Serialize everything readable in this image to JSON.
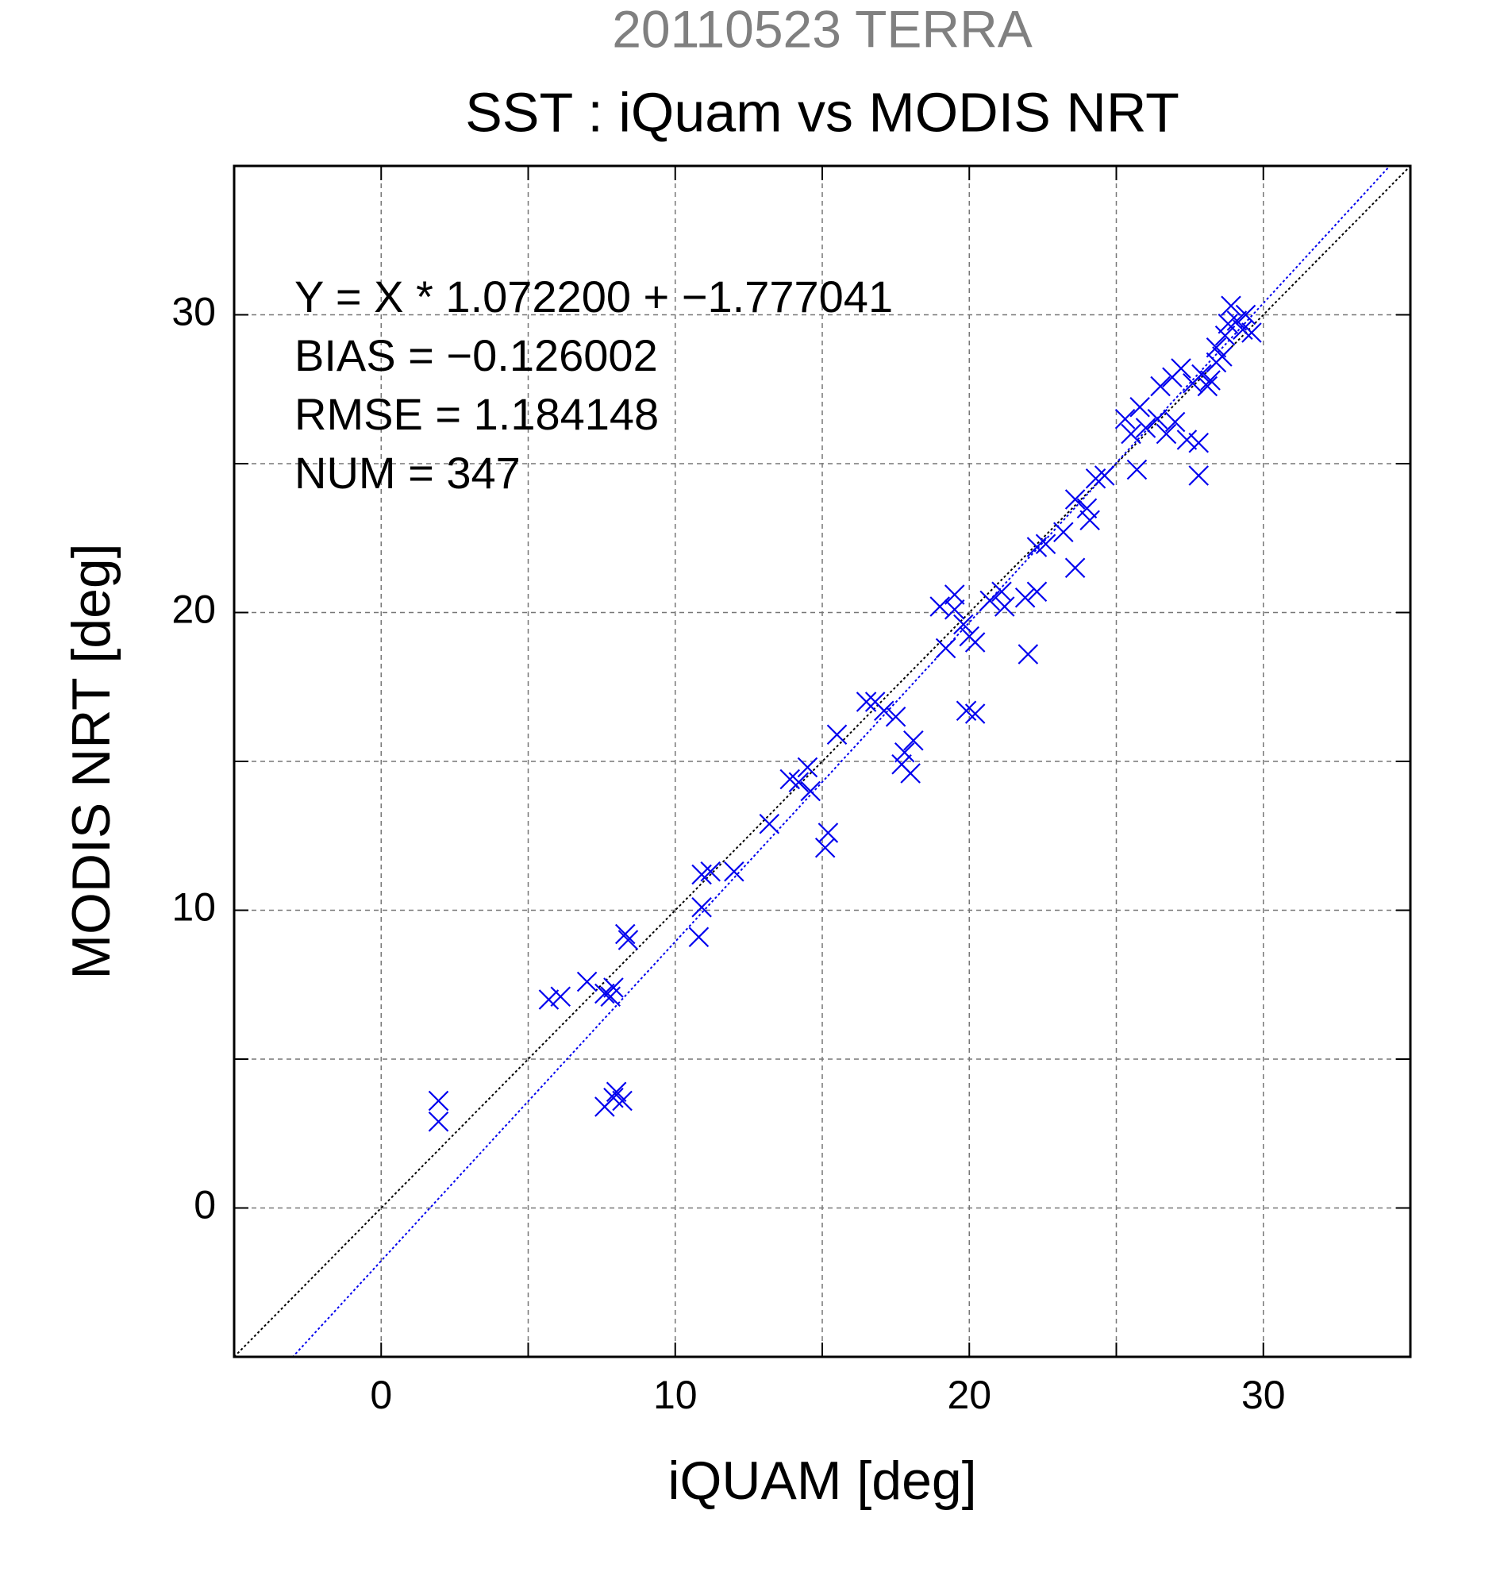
{
  "chart_data": {
    "type": "scatter",
    "header": "20110523 TERRA",
    "title": "SST : iQuam vs MODIS NRT",
    "xlabel": "iQUAM [deg]",
    "ylabel": "MODIS NRT [deg]",
    "annotations": [
      "Y = X * 1.072200 + −1.777041",
      "BIAS = −0.126002",
      "RMSE = 1.184148",
      "NUM = 347"
    ],
    "xlim": [
      -5,
      35
    ],
    "ylim": [
      -5,
      35
    ],
    "xticks": [
      0,
      10,
      20,
      30
    ],
    "yticks": [
      0,
      10,
      20,
      30
    ],
    "xgrid": [
      5,
      15,
      25
    ],
    "ygrid": [
      5,
      15,
      25
    ],
    "grid": true,
    "fit_lines": [
      {
        "slope": 1,
        "intercept": 0,
        "color": "#000000"
      },
      {
        "slope": 1.0722,
        "intercept": -1.777041,
        "color": "#0000ee"
      }
    ],
    "series": [
      {
        "color": "#0000ee",
        "x": [
          1.95,
          1.95,
          5.7,
          6.1,
          7.0,
          7.6,
          7.9,
          7.8,
          7.6,
          8.0,
          8.2,
          7.9,
          8.3,
          8.4,
          10.8,
          10.9,
          10.9,
          11.2,
          12.0,
          13.2,
          13.9,
          14.2,
          14.5,
          14.6,
          15.1,
          15.2,
          15.5,
          16.5,
          16.8,
          17.1,
          17.5,
          17.8,
          18.0,
          18.1,
          17.7,
          19.0,
          19.2,
          19.5,
          19.5,
          19.8,
          20.0,
          20.2,
          19.9,
          20.2,
          20.7,
          21.1,
          21.2,
          21.9,
          22.3,
          22.0,
          22.3,
          22.6,
          23.2,
          23.6,
          23.6,
          24.0,
          24.1,
          24.3,
          24.6,
          25.3,
          25.5,
          25.7,
          25.8,
          26.0,
          26.4,
          26.7,
          27.0,
          27.4,
          27.8,
          27.8,
          26.5,
          26.9,
          27.2,
          27.6,
          27.9,
          28.1,
          28.4,
          28.4,
          28.7,
          28.6,
          28.9,
          29.1,
          29.3,
          29.4,
          28.8,
          29.6,
          28.2
        ],
        "values": [
          3.6,
          2.9,
          7.0,
          7.1,
          7.6,
          7.2,
          7.4,
          7.1,
          3.4,
          3.9,
          3.6,
          3.7,
          9.2,
          9.0,
          9.1,
          10.1,
          11.2,
          11.3,
          11.3,
          12.9,
          14.4,
          14.3,
          14.8,
          14.0,
          12.1,
          12.6,
          15.9,
          17.0,
          17.0,
          16.7,
          16.5,
          15.3,
          14.6,
          15.7,
          14.9,
          20.2,
          18.8,
          20.6,
          20.1,
          19.6,
          19.2,
          19.0,
          16.7,
          16.6,
          20.4,
          20.7,
          20.2,
          20.5,
          20.7,
          18.6,
          22.2,
          22.3,
          22.7,
          21.5,
          23.8,
          23.5,
          23.1,
          24.5,
          24.6,
          26.5,
          26.0,
          24.8,
          26.9,
          26.2,
          26.5,
          26.0,
          26.4,
          25.8,
          25.7,
          24.6,
          27.6,
          27.9,
          28.2,
          27.7,
          28.0,
          27.6,
          28.4,
          28.9,
          29.3,
          28.6,
          30.3,
          29.8,
          29.5,
          30.0,
          29.7,
          29.4,
          27.8
        ]
      }
    ]
  }
}
